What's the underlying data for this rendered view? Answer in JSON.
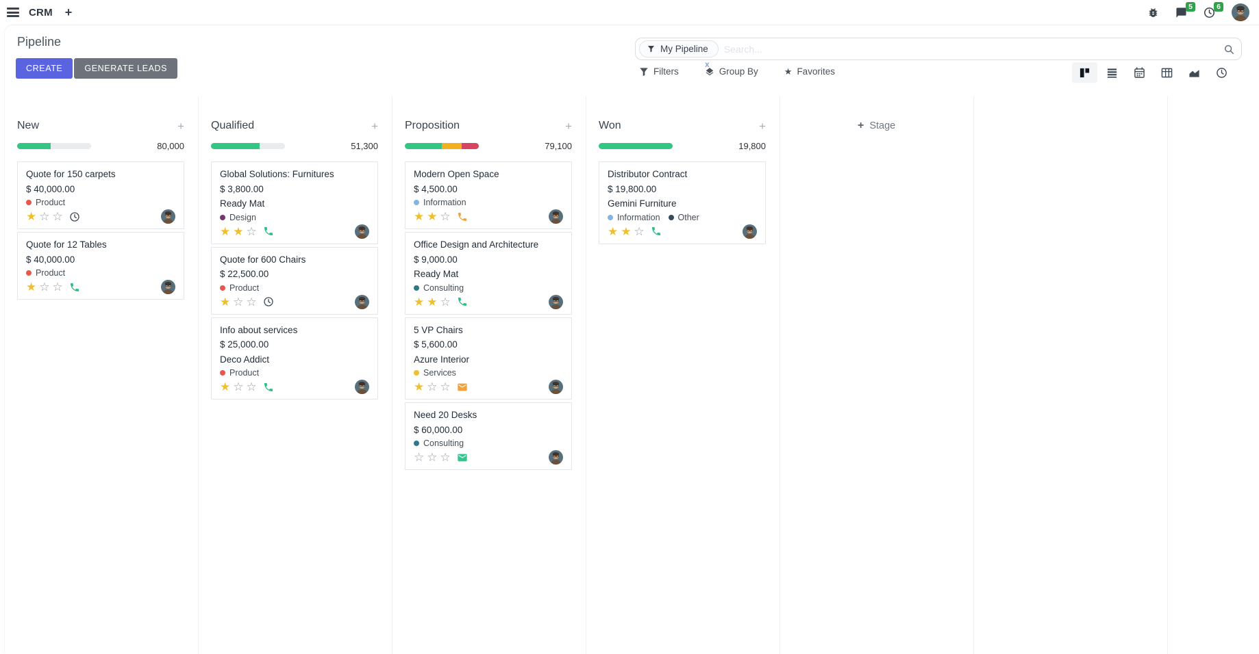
{
  "navbar": {
    "app_name": "CRM",
    "messages_badge": "5",
    "activities_badge": "6"
  },
  "control_panel": {
    "breadcrumb": "Pipeline",
    "create_label": "CREATE",
    "generate_leads_label": "GENERATE LEADS",
    "search": {
      "facet_label": "My Pipeline",
      "placeholder": "Search...",
      "remove_facet": "x"
    },
    "filters_label": "Filters",
    "group_by_label": "Group By",
    "favorites_label": "Favorites"
  },
  "colors": {
    "primary_button": "#5a63e0",
    "secondary_button": "#6e727a",
    "badge_green": "#31a24c",
    "progress_green": "#32c584",
    "progress_orange": "#f2b01e",
    "progress_red": "#d6455f",
    "star_gold": "#f0bf2d"
  },
  "kanban": {
    "quick_add_symbol": "+",
    "stage_plus_symbol": "+",
    "add_stage_label": "Stage",
    "columns": [
      {
        "title": "New",
        "count": "80,000",
        "progress": [
          {
            "color": "#32c584",
            "pct": 45
          },
          {
            "color": "#e9ecef",
            "pct": 55
          }
        ],
        "cards": [
          {
            "title": "Quote for 150 carpets",
            "amount": "$ 40,000.00",
            "tags": [
              {
                "label": "Product",
                "color": "#e8574c"
              }
            ],
            "stars": 1,
            "activity": {
              "icon": "clock",
              "color": "#414d59"
            }
          },
          {
            "title": "Quote for 12 Tables",
            "amount": "$ 40,000.00",
            "tags": [
              {
                "label": "Product",
                "color": "#e8574c"
              }
            ],
            "stars": 1,
            "activity": {
              "icon": "phone",
              "color": "#2fbe84"
            }
          }
        ]
      },
      {
        "title": "Qualified",
        "count": "51,300",
        "progress": [
          {
            "color": "#32c584",
            "pct": 66
          },
          {
            "color": "#e9ecef",
            "pct": 34
          }
        ],
        "cards": [
          {
            "title": "Global Solutions: Furnitures",
            "amount": "$ 3,800.00",
            "company": "Ready Mat",
            "tags": [
              {
                "label": "Design",
                "color": "#71396f"
              }
            ],
            "stars": 2,
            "activity": {
              "icon": "phone",
              "color": "#2fbe84"
            }
          },
          {
            "title": "Quote for 600 Chairs",
            "amount": "$ 22,500.00",
            "tags": [
              {
                "label": "Product",
                "color": "#e8574c"
              }
            ],
            "stars": 1,
            "activity": {
              "icon": "clock",
              "color": "#414d59"
            }
          },
          {
            "title": "Info about services",
            "amount": "$ 25,000.00",
            "company": "Deco Addict",
            "tags": [
              {
                "label": "Product",
                "color": "#e8574c"
              }
            ],
            "stars": 1,
            "activity": {
              "icon": "phone",
              "color": "#2fbe84"
            }
          }
        ]
      },
      {
        "title": "Proposition",
        "count": "79,100",
        "progress": [
          {
            "color": "#32c584",
            "pct": 50
          },
          {
            "color": "#f2b01e",
            "pct": 27
          },
          {
            "color": "#d6455f",
            "pct": 23
          }
        ],
        "cards": [
          {
            "title": "Modern Open Space",
            "amount": "$ 4,500.00",
            "tags": [
              {
                "label": "Information",
                "color": "#84b4e0"
              }
            ],
            "stars": 2,
            "activity": {
              "icon": "phone",
              "color": "#f0a23c"
            }
          },
          {
            "title": "Office Design and Architecture",
            "amount": "$ 9,000.00",
            "company": "Ready Mat",
            "tags": [
              {
                "label": "Consulting",
                "color": "#30798c"
              }
            ],
            "stars": 2,
            "activity": {
              "icon": "phone",
              "color": "#2fbe84"
            }
          },
          {
            "title": "5 VP Chairs",
            "amount": "$ 5,600.00",
            "company": "Azure Interior",
            "tags": [
              {
                "label": "Services",
                "color": "#efc02f"
              }
            ],
            "stars": 1,
            "activity": {
              "icon": "envelope",
              "color": "#f0a23c"
            }
          },
          {
            "title": "Need 20 Desks",
            "amount": "$ 60,000.00",
            "tags": [
              {
                "label": "Consulting",
                "color": "#30798c"
              }
            ],
            "stars": 0,
            "activity": {
              "icon": "envelope",
              "color": "#35c58e"
            }
          }
        ]
      },
      {
        "title": "Won",
        "count": "19,800",
        "progress": [
          {
            "color": "#32c584",
            "pct": 100
          }
        ],
        "cards": [
          {
            "title": "Distributor Contract",
            "amount": "$ 19,800.00",
            "company": "Gemini Furniture",
            "tags": [
              {
                "label": "Information",
                "color": "#84b4e0"
              },
              {
                "label": "Other",
                "color": "#374a5e"
              }
            ],
            "stars": 2,
            "activity": {
              "icon": "phone",
              "color": "#2fbe84"
            }
          }
        ]
      }
    ]
  }
}
